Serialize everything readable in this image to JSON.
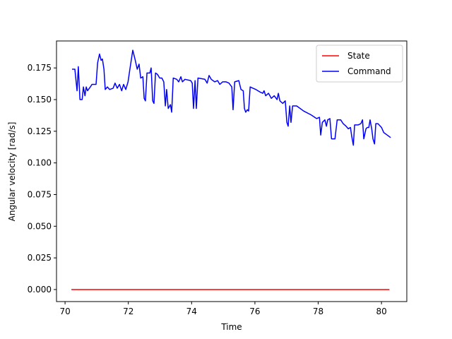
{
  "chart_data": {
    "type": "line",
    "xlabel": "Time",
    "ylabel": "Angular velocity [rad/s]",
    "xlim": [
      69.73,
      80.8
    ],
    "ylim": [
      -0.0095,
      0.1963
    ],
    "xticks": [
      70,
      72,
      74,
      76,
      78,
      80
    ],
    "yticks": [
      {
        "value": 0,
        "label": "0.000"
      },
      {
        "value": 0.025,
        "label": "0.025"
      },
      {
        "value": 0.05,
        "label": "0.050"
      },
      {
        "value": 0.075,
        "label": "0.075"
      },
      {
        "value": 0.1,
        "label": "0.100"
      },
      {
        "value": 0.125,
        "label": "0.125"
      },
      {
        "value": 0.15,
        "label": "0.150"
      },
      {
        "value": 0.175,
        "label": "0.175"
      }
    ],
    "legend": "upper right",
    "series": [
      {
        "name": "State",
        "color": "#ff0000",
        "x": [
          70.2,
          80.25
        ],
        "values": [
          0,
          0
        ]
      },
      {
        "name": "Command",
        "color": "#0000ff",
        "x": [
          70.22,
          70.31,
          70.38,
          70.42,
          70.47,
          70.54,
          70.58,
          70.63,
          70.67,
          70.71,
          70.8,
          70.85,
          70.98,
          71.03,
          71.09,
          71.14,
          71.18,
          71.23,
          71.27,
          71.34,
          71.41,
          71.52,
          71.58,
          71.65,
          71.72,
          71.79,
          71.85,
          71.92,
          71.99,
          72.05,
          72.14,
          72.21,
          72.28,
          72.34,
          72.39,
          72.46,
          72.5,
          72.54,
          72.59,
          72.68,
          72.72,
          72.77,
          72.81,
          72.86,
          72.92,
          72.99,
          73.06,
          73.12,
          73.17,
          73.21,
          73.26,
          73.33,
          73.37,
          73.42,
          73.53,
          73.59,
          73.66,
          73.71,
          73.79,
          73.97,
          74.02,
          74.06,
          74.11,
          74.15,
          74.2,
          74.42,
          74.49,
          74.55,
          74.62,
          74.73,
          74.82,
          74.89,
          74.98,
          75.09,
          75.18,
          75.27,
          75.31,
          75.36,
          75.49,
          75.56,
          75.63,
          75.67,
          75.71,
          75.76,
          75.8,
          75.85,
          75.94,
          76.03,
          76.16,
          76.25,
          76.29,
          76.34,
          76.43,
          76.52,
          76.61,
          76.7,
          76.74,
          76.79,
          76.88,
          76.96,
          77.01,
          77.05,
          77.1,
          77.14,
          77.19,
          77.32,
          77.54,
          77.77,
          77.95,
          78.04,
          78.08,
          78.13,
          78.21,
          78.26,
          78.3,
          78.37,
          78.42,
          78.53,
          78.6,
          78.71,
          78.79,
          78.88,
          78.95,
          79.02,
          79.06,
          79.11,
          79.15,
          79.26,
          79.35,
          79.4,
          79.44,
          79.51,
          79.55,
          79.6,
          79.64,
          79.69,
          79.73,
          79.78,
          79.82,
          79.89,
          80.0,
          80.07,
          80.18,
          80.29
        ],
        "values": [
          0.174,
          0.174,
          0.157,
          0.176,
          0.15,
          0.15,
          0.16,
          0.153,
          0.16,
          0.157,
          0.16,
          0.162,
          0.162,
          0.179,
          0.186,
          0.181,
          0.182,
          0.174,
          0.158,
          0.16,
          0.158,
          0.159,
          0.163,
          0.159,
          0.162,
          0.157,
          0.162,
          0.158,
          0.164,
          0.174,
          0.189,
          0.182,
          0.174,
          0.178,
          0.167,
          0.168,
          0.151,
          0.149,
          0.171,
          0.171,
          0.175,
          0.149,
          0.147,
          0.171,
          0.17,
          0.167,
          0.167,
          0.164,
          0.145,
          0.158,
          0.143,
          0.146,
          0.14,
          0.167,
          0.166,
          0.164,
          0.168,
          0.164,
          0.166,
          0.165,
          0.163,
          0.143,
          0.165,
          0.143,
          0.167,
          0.166,
          0.163,
          0.169,
          0.166,
          0.164,
          0.165,
          0.162,
          0.164,
          0.164,
          0.163,
          0.16,
          0.142,
          0.164,
          0.165,
          0.158,
          0.157,
          0.143,
          0.14,
          0.142,
          0.141,
          0.16,
          0.159,
          0.158,
          0.156,
          0.155,
          0.157,
          0.153,
          0.155,
          0.151,
          0.153,
          0.15,
          0.155,
          0.149,
          0.147,
          0.149,
          0.132,
          0.129,
          0.145,
          0.132,
          0.145,
          0.145,
          0.141,
          0.138,
          0.135,
          0.136,
          0.122,
          0.132,
          0.134,
          0.129,
          0.134,
          0.135,
          0.119,
          0.119,
          0.134,
          0.134,
          0.131,
          0.129,
          0.127,
          0.128,
          0.121,
          0.114,
          0.13,
          0.13,
          0.131,
          0.134,
          0.119,
          0.127,
          0.128,
          0.128,
          0.134,
          0.127,
          0.119,
          0.115,
          0.131,
          0.131,
          0.128,
          0.124,
          0.122,
          0.12
        ]
      }
    ]
  }
}
